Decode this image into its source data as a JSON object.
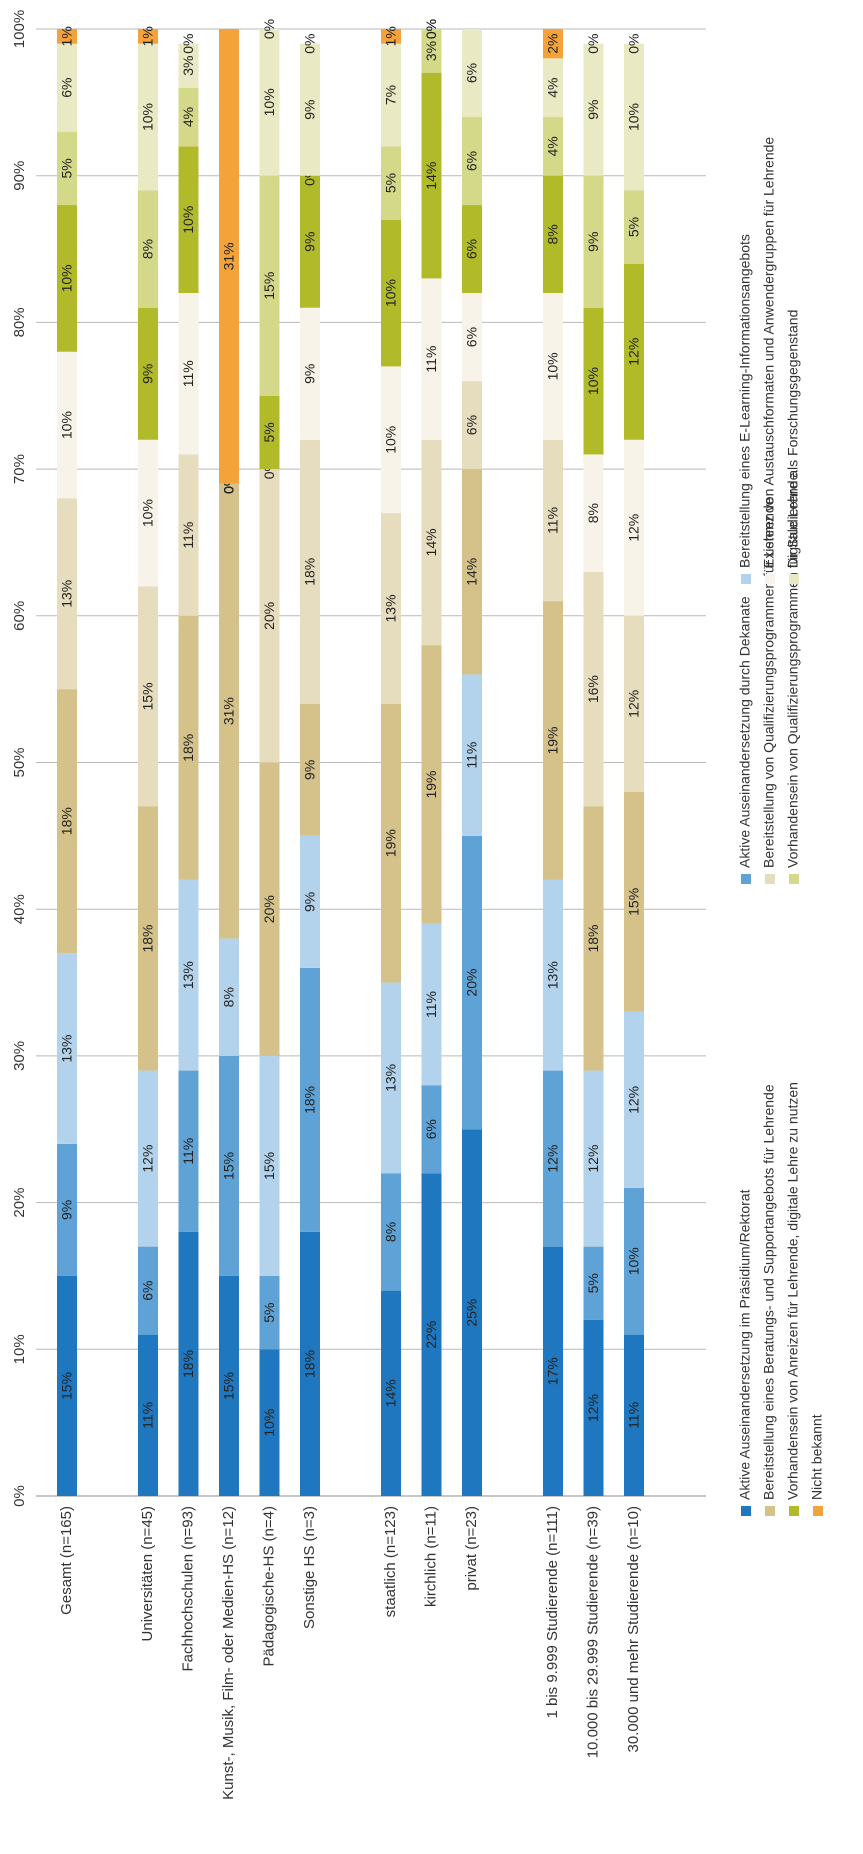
{
  "chart_data": {
    "type": "bar",
    "stacked": true,
    "orientation": "horizontal-bars, rotated page",
    "ylim": [
      0,
      100
    ],
    "y_ticks": [
      "0%",
      "10%",
      "20%",
      "30%",
      "40%",
      "50%",
      "60%",
      "70%",
      "80%",
      "90%",
      "100%"
    ],
    "grid": true,
    "legend_placement": "bottom",
    "categories": [
      "Gesamt (n=165)",
      "Universitäten (n=45)",
      "Fachhochschulen (n=93)",
      "Kunst-, Musik, Film- oder Medien-HS (n=12)",
      "Pädagogische-HS (n=4)",
      "Sonstige HS (n=3)",
      "staatlich (n=123)",
      "kirchlich (n=11)",
      "privat (n=23)",
      "1 bis 9.999 Studierende (n=111)",
      "10.000 bis 29.999 Studierende (n=39)",
      "30.000 und mehr Studierende (n=10)"
    ],
    "group_breaks_after": [
      0,
      5,
      8
    ],
    "series": [
      {
        "name": "Aktive Auseinandersetzung im Präsidium/Rektorat",
        "color": "#1F78BF",
        "values": [
          15,
          11,
          18,
          15,
          10,
          18,
          14,
          22,
          25,
          17,
          12,
          11
        ]
      },
      {
        "name": "Aktive Auseinandersetzung durch Dekanate",
        "color": "#5FA3D6",
        "values": [
          9,
          6,
          11,
          15,
          5,
          18,
          8,
          6,
          20,
          12,
          5,
          10
        ]
      },
      {
        "name": "Bereitstellung eines E-Learning-Informationsangebots",
        "color": "#B3D3EC",
        "values": [
          13,
          12,
          13,
          8,
          15,
          9,
          13,
          11,
          11,
          13,
          12,
          12
        ]
      },
      {
        "name": "Bereitstellung eines Beratungs- und Supportangebots für Lehrende",
        "color": "#D4C28A",
        "values": [
          18,
          18,
          18,
          31,
          20,
          9,
          19,
          19,
          14,
          19,
          18,
          15
        ]
      },
      {
        "name": "Bereitstellung von Qualifizierungsprogrammen für Lehrende",
        "color": "#E6DCBE",
        "values": [
          13,
          15,
          11,
          0,
          20,
          18,
          13,
          14,
          6,
          11,
          16,
          12
        ]
      },
      {
        "name": "Existenz von Austauschformaten und Anwendergruppen für Lehrende",
        "color": "#F7F3E8",
        "values": [
          10,
          10,
          11,
          0,
          0,
          9,
          10,
          11,
          6,
          10,
          8,
          12
        ]
      },
      {
        "name": "Vorhandensein von Anreizen für Lehrende, digitale Lehre zu nutzen",
        "color": "#B1BB29",
        "values": [
          10,
          9,
          10,
          0,
          5,
          9,
          10,
          14,
          6,
          8,
          10,
          12
        ]
      },
      {
        "name": "Vorhandensein von Qualifizierungsprogrammen für Studierende",
        "color": "#D4D98A",
        "values": [
          5,
          8,
          4,
          0,
          15,
          0,
          5,
          3,
          6,
          4,
          9,
          5
        ]
      },
      {
        "name": "Digitale Lehre als Forschungsgegenstand",
        "color": "#E9E9C4",
        "values": [
          6,
          10,
          3,
          0,
          10,
          9,
          7,
          0,
          6,
          4,
          9,
          10
        ]
      },
      {
        "name": "Nicht bekannt",
        "color": "#F4A33A",
        "values": [
          1,
          1,
          0,
          31,
          0,
          0,
          1,
          0,
          0,
          2,
          0,
          0
        ]
      }
    ],
    "labels": [
      [
        "15%",
        "9%",
        "13%",
        "18%",
        "13%",
        "10%",
        "10%",
        "5%",
        "6%",
        "1%"
      ],
      [
        "11%",
        "6%",
        "12%",
        "18%",
        "15%",
        "10%",
        "9%",
        "8%",
        "10%",
        "1%"
      ],
      [
        "18%",
        "11%",
        "13%",
        "18%",
        "11%",
        "11%",
        "10%",
        "4%",
        "3%",
        "0%"
      ],
      [
        "15%",
        "15%",
        "8%",
        "31%",
        "0%",
        "0%",
        "0%",
        "0%",
        "0%",
        "31%"
      ],
      [
        "10%",
        "5%",
        "15%",
        "20%",
        "20%",
        "0%",
        "5%",
        "15%",
        "10%",
        "0%"
      ],
      [
        "18%",
        "18%",
        "9%",
        "9%",
        "18%",
        "9%",
        "9%",
        "0%",
        "9%",
        "0%"
      ],
      [
        "14%",
        "8%",
        "13%",
        "19%",
        "13%",
        "10%",
        "10%",
        "5%",
        "7%",
        "1%"
      ],
      [
        "22%",
        "6%",
        "11%",
        "19%",
        "14%",
        "11%",
        "14%",
        "3%",
        "0%",
        "0%"
      ],
      [
        "25%",
        "20%",
        "11%",
        "14%",
        "6%",
        "6%",
        "6%",
        "6%",
        "6%",
        ""
      ],
      [
        "17%",
        "12%",
        "13%",
        "19%",
        "11%",
        "10%",
        "8%",
        "4%",
        "4%",
        "2%"
      ],
      [
        "12%",
        "5%",
        "12%",
        "18%",
        "16%",
        "8%",
        "10%",
        "9%",
        "9%",
        "0%"
      ],
      [
        "11%",
        "10%",
        "12%",
        "15%",
        "12%",
        "12%",
        "12%",
        "5%",
        "10%",
        "0%"
      ]
    ]
  }
}
